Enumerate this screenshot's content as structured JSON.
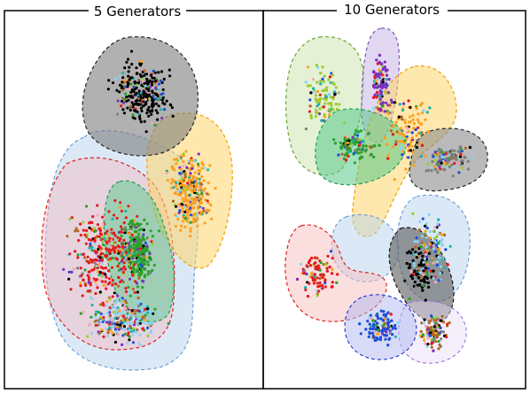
{
  "panels": [
    {
      "title": "5 Generators",
      "regions": [
        {
          "name": "light-blue",
          "fill": "#b8d3ee",
          "stroke": "#6f9fd8",
          "fill_opacity": 0.5
        },
        {
          "name": "red",
          "fill": "#f3b7c2",
          "stroke": "#e02020",
          "fill_opacity": 0.45
        },
        {
          "name": "orange",
          "fill": "#ffd56a",
          "stroke": "#f0a000",
          "fill_opacity": 0.55
        },
        {
          "name": "green",
          "fill": "#58c98a",
          "stroke": "#1e9e50",
          "fill_opacity": 0.5
        },
        {
          "name": "gray",
          "fill": "#7d7d7d",
          "stroke": "#222222",
          "fill_opacity": 0.6
        }
      ]
    },
    {
      "title": "10 Generators",
      "regions": [
        {
          "name": "light-green",
          "fill": "#cfe6b0",
          "stroke": "#6aa63a",
          "fill_opacity": 0.55
        },
        {
          "name": "lavender",
          "fill": "#c9b6e6",
          "stroke": "#7a55b8",
          "fill_opacity": 0.55
        },
        {
          "name": "orange",
          "fill": "#ffd56a",
          "stroke": "#f0a000",
          "fill_opacity": 0.55
        },
        {
          "name": "green",
          "fill": "#58c98a",
          "stroke": "#1e9e50",
          "fill_opacity": 0.55
        },
        {
          "name": "gray",
          "fill": "#8c8c8c",
          "stroke": "#222222",
          "fill_opacity": 0.6
        },
        {
          "name": "light-blue",
          "fill": "#b8d3ee",
          "stroke": "#6f9fd8",
          "fill_opacity": 0.5
        },
        {
          "name": "red",
          "fill": "#f8c0c0",
          "stroke": "#e02020",
          "fill_opacity": 0.5
        },
        {
          "name": "dark-gray",
          "fill": "#5a5a5a",
          "stroke": "#111111",
          "fill_opacity": 0.6
        },
        {
          "name": "blue",
          "fill": "#b0b8f0",
          "stroke": "#3040d0",
          "fill_opacity": 0.5
        },
        {
          "name": "pale-violet",
          "fill": "#e8dcf8",
          "stroke": "#a080e0",
          "fill_opacity": 0.45
        }
      ]
    }
  ],
  "point_colors": [
    "#000000",
    "#e41a1c",
    "#ff9f1c",
    "#2ca02c",
    "#1f4fd8",
    "#7b2fbf",
    "#8dd3f0",
    "#f4a6b7",
    "#9acd32",
    "#b5651d",
    "#7f7f7f",
    "#20b2aa"
  ]
}
